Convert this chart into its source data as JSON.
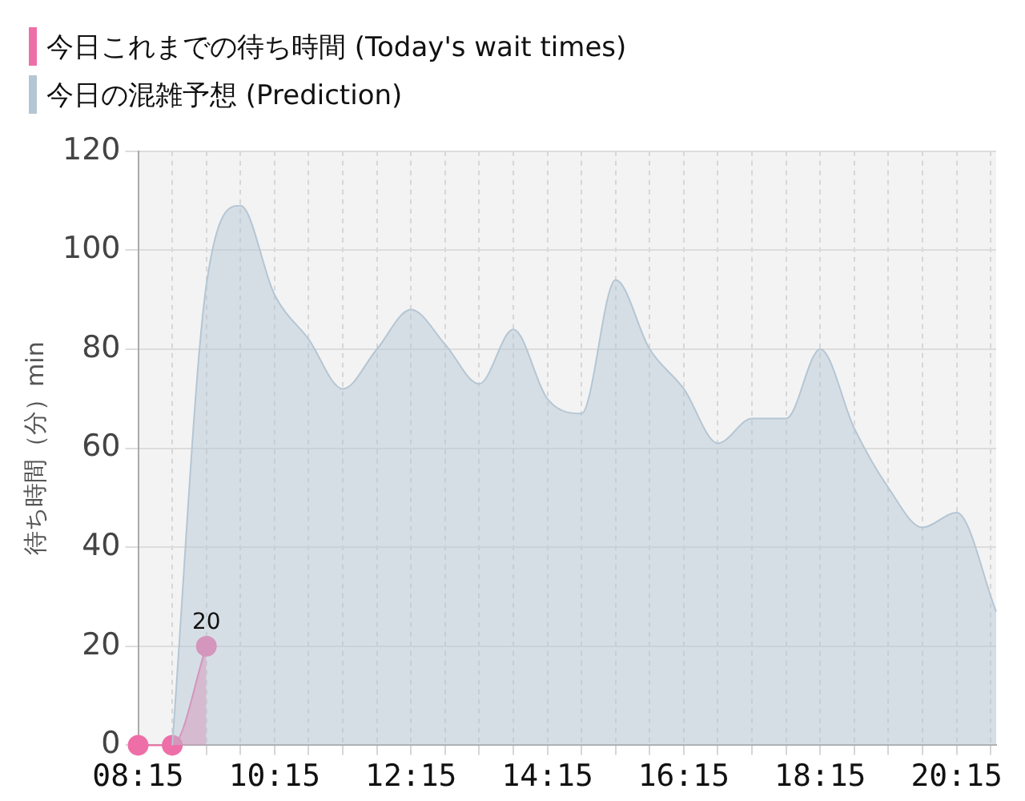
{
  "chart_data": {
    "type": "area",
    "ylabel": "待ち時間（分）min",
    "legend": "top left",
    "grid": true,
    "xlim": [
      8.25,
      20.83
    ],
    "ylim": [
      0,
      120
    ],
    "yticks": [
      0,
      20,
      40,
      60,
      80,
      100,
      120
    ],
    "xticks": [
      {
        "value": 8.25,
        "label": "08:15"
      },
      {
        "value": 8.75,
        "label": null
      },
      {
        "value": 9.25,
        "label": null
      },
      {
        "value": 9.75,
        "label": null
      },
      {
        "value": 10.25,
        "label": "10:15"
      },
      {
        "value": 10.75,
        "label": null
      },
      {
        "value": 11.25,
        "label": null
      },
      {
        "value": 11.75,
        "label": null
      },
      {
        "value": 12.25,
        "label": "12:15"
      },
      {
        "value": 12.75,
        "label": null
      },
      {
        "value": 13.25,
        "label": null
      },
      {
        "value": 13.75,
        "label": null
      },
      {
        "value": 14.25,
        "label": "14:15"
      },
      {
        "value": 14.75,
        "label": null
      },
      {
        "value": 15.25,
        "label": null
      },
      {
        "value": 15.75,
        "label": null
      },
      {
        "value": 16.25,
        "label": "16:15"
      },
      {
        "value": 16.75,
        "label": null
      },
      {
        "value": 17.25,
        "label": null
      },
      {
        "value": 17.75,
        "label": null
      },
      {
        "value": 18.25,
        "label": "18:15"
      },
      {
        "value": 18.75,
        "label": null
      },
      {
        "value": 19.25,
        "label": null
      },
      {
        "value": 19.75,
        "label": null
      },
      {
        "value": 20.25,
        "label": "20:15"
      },
      {
        "value": 20.75,
        "label": null
      }
    ],
    "series": [
      {
        "name": "今日これまでの待ち時間 (Today's wait times)",
        "color": "#ee6fa8",
        "marker": "circle",
        "x": [
          8.25,
          8.75,
          9.25
        ],
        "values": [
          0,
          0,
          20
        ],
        "value_labels": [
          null,
          null,
          "20"
        ]
      },
      {
        "name": "今日の混雑予想 (Prediction)",
        "color": "#b4c6d4",
        "marker": "none",
        "x": [
          8.75,
          9.25,
          9.75,
          10.25,
          10.75,
          11.25,
          11.75,
          12.25,
          12.75,
          13.25,
          13.75,
          14.25,
          14.75,
          15.25,
          15.75,
          16.25,
          16.75,
          17.25,
          17.75,
          18.25,
          18.75,
          19.25,
          19.75,
          20.25,
          20.83
        ],
        "values": [
          0,
          93,
          109,
          91,
          82,
          72,
          80,
          88,
          81,
          73,
          84,
          70,
          67,
          94,
          80,
          72,
          61,
          66,
          66,
          80,
          64,
          52,
          44,
          47,
          27
        ]
      }
    ]
  }
}
